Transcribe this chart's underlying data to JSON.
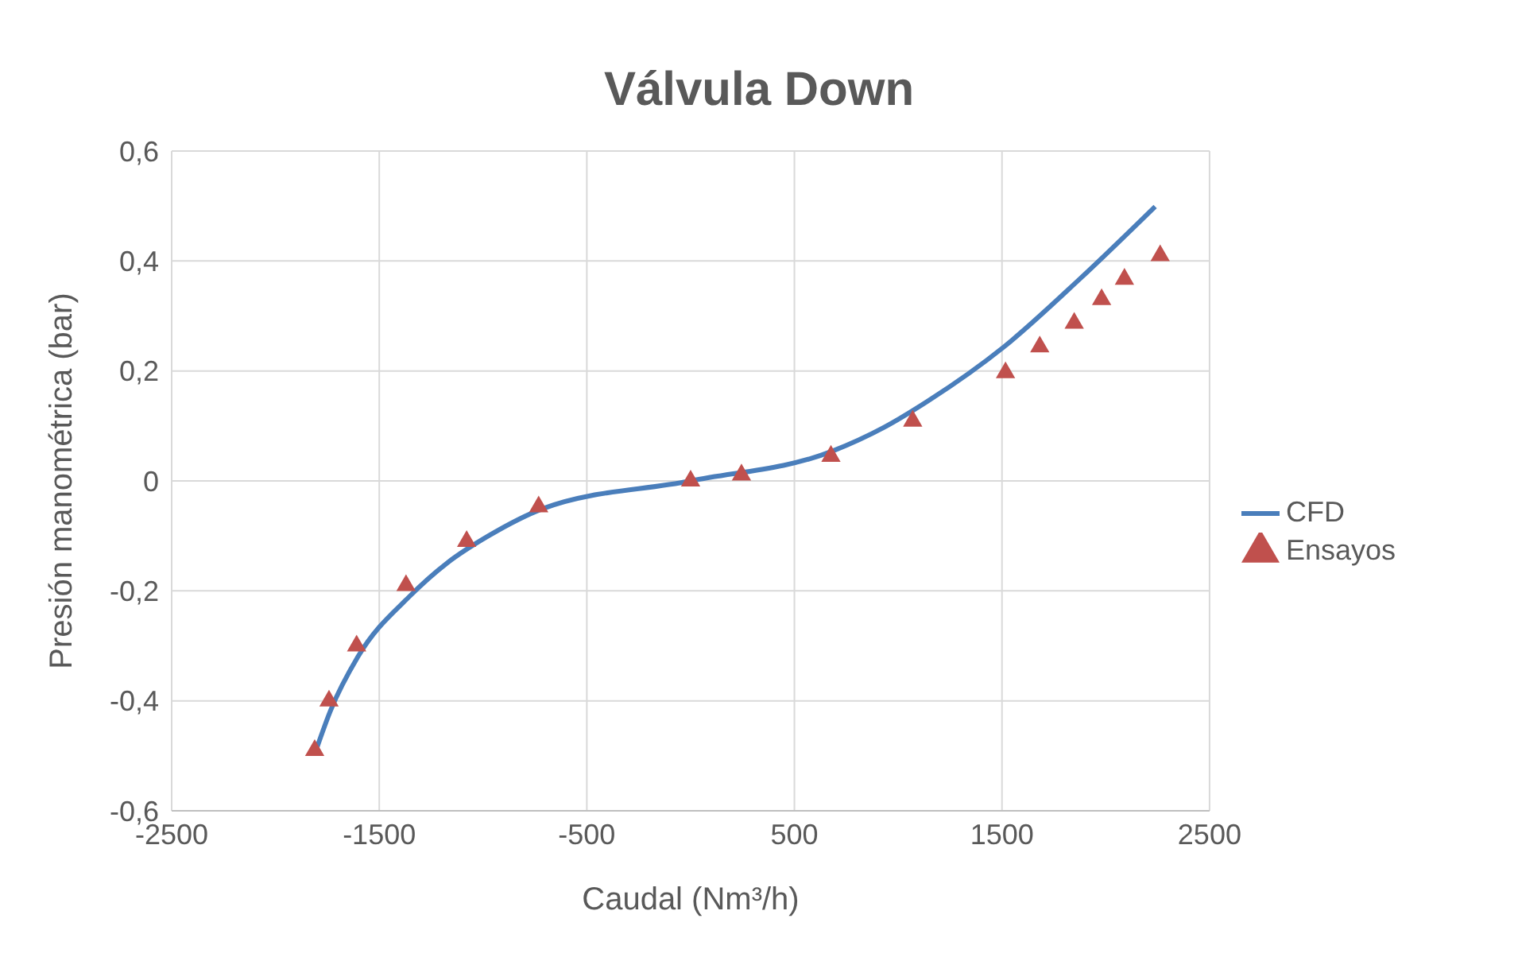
{
  "chart_data": {
    "type": "line",
    "title": "Válvula Down",
    "xlabel": "Caudal (Nm³/h)",
    "ylabel": "Presión manométrica (bar)",
    "xlim": [
      -2500,
      2500
    ],
    "xticks": [
      -2500,
      -1500,
      -500,
      500,
      1500,
      2500
    ],
    "ylim": [
      -0.6,
      0.6
    ],
    "yticks": [
      {
        "value": -0.6,
        "label": "-0,6"
      },
      {
        "value": -0.4,
        "label": "-0,4"
      },
      {
        "value": -0.2,
        "label": "-0,2"
      },
      {
        "value": 0,
        "label": "0"
      },
      {
        "value": 0.2,
        "label": "0,2"
      },
      {
        "value": 0.4,
        "label": "0,4"
      },
      {
        "value": 0.6,
        "label": "0,6"
      }
    ],
    "grid": true,
    "legend": "right",
    "series": [
      {
        "name": "CFD",
        "color": "#4a7ebb",
        "marker": "none",
        "line_style": "solid",
        "x": [
          -1801,
          -1735,
          -1603,
          -1354,
          -1172,
          -974,
          -709,
          0,
          682,
          930,
          1146,
          1510,
          1874,
          2238
        ],
        "values": [
          -0.486,
          -0.418,
          -0.32,
          -0.21,
          -0.149,
          -0.1,
          -0.05,
          0,
          0.054,
          0.097,
          0.146,
          0.244,
          0.367,
          0.499
        ]
      },
      {
        "name": "Ensayos",
        "type": "scatter",
        "color": "#c0504d",
        "marker": "triangle",
        "x": [
          -1811,
          -1742,
          -1609,
          -1371,
          -1079,
          -732,
          0,
          245,
          676,
          1070,
          1517,
          1682,
          1848,
          1980,
          2090,
          2262
        ],
        "values": [
          -0.49,
          -0.4,
          -0.3,
          -0.19,
          -0.11,
          -0.047,
          0,
          0.011,
          0.045,
          0.109,
          0.197,
          0.244,
          0.287,
          0.33,
          0.367,
          0.41
        ]
      }
    ]
  }
}
